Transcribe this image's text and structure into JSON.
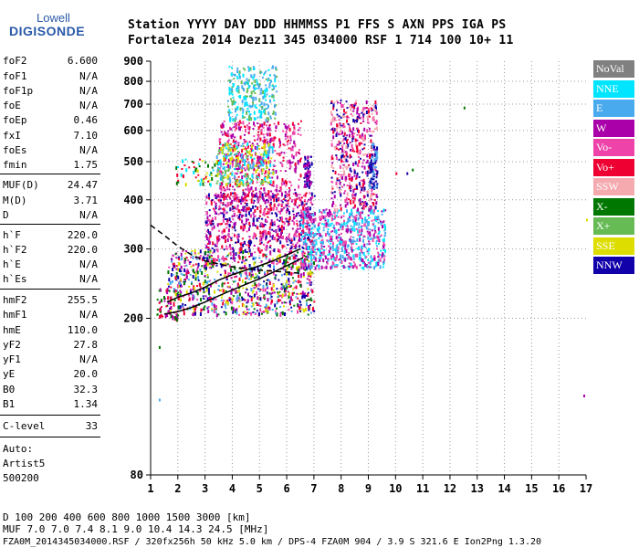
{
  "logo": {
    "line1": "Lowell",
    "line2": "DIGISONDE"
  },
  "header": {
    "row1": "Station   YYYY DAY   DDD HHMMSS P1  FFS S AXN PPS IGA PS",
    "row2": "Fortaleza 2014 Dez11 345 034000 RSF     1 714 100 10+ 11"
  },
  "params": [
    {
      "name": "foF2",
      "value": "6.600"
    },
    {
      "name": "foF1",
      "value": "N/A"
    },
    {
      "name": "foF1p",
      "value": "N/A"
    },
    {
      "name": "foE",
      "value": "N/A"
    },
    {
      "name": "foEp",
      "value": "0.46"
    },
    {
      "name": "fxI",
      "value": "7.10"
    },
    {
      "name": "foEs",
      "value": "N/A"
    },
    {
      "name": "fmin",
      "value": "1.75"
    },
    {
      "name": "MUF(D)",
      "value": "24.47"
    },
    {
      "name": "M(D)",
      "value": "3.71"
    },
    {
      "name": "D",
      "value": "N/A"
    },
    {
      "name": "h`F",
      "value": "220.0"
    },
    {
      "name": "h`F2",
      "value": "220.0"
    },
    {
      "name": "h`E",
      "value": "N/A"
    },
    {
      "name": "h`Es",
      "value": "N/A"
    },
    {
      "name": "hmF2",
      "value": "255.5"
    },
    {
      "name": "hmF1",
      "value": "N/A"
    },
    {
      "name": "hmE",
      "value": "110.0"
    },
    {
      "name": "yF2",
      "value": "27.8"
    },
    {
      "name": "yF1",
      "value": "N/A"
    },
    {
      "name": "yE",
      "value": "20.0"
    },
    {
      "name": "B0",
      "value": "32.3"
    },
    {
      "name": "B1",
      "value": "1.34"
    },
    {
      "name": "C-level",
      "value": "33"
    }
  ],
  "autoscale": {
    "line1": "Auto:",
    "line2": "Artist5",
    "line3": "500200"
  },
  "legend": [
    {
      "label": "NoVal",
      "color": "#808080"
    },
    {
      "label": "NNE",
      "color": "#00e5ff"
    },
    {
      "label": "E",
      "color": "#4aaaee"
    },
    {
      "label": "W",
      "color": "#aa00aa"
    },
    {
      "label": "Vo-",
      "color": "#ee44aa"
    },
    {
      "label": "Vo+",
      "color": "#ee0033"
    },
    {
      "label": "SSW",
      "color": "#f5aab0"
    },
    {
      "label": "X-",
      "color": "#007700"
    },
    {
      "label": "X+",
      "color": "#66bb55"
    },
    {
      "label": "SSE",
      "color": "#dddd00"
    },
    {
      "label": "NNW",
      "color": "#1100aa"
    }
  ],
  "footer": {
    "row1": "D     100  200  400  600  800 1000 1500 3000 [km]",
    "row2": "MUF   7.0  7.0  7.4  8.1  9.0 10.4 14.3 24.5 [MHz]",
    "row3": "FZA0M_2014345034000.RSF / 320fx256h 50 kHz 5.0 km / DPS-4 FZA0M 904 / 3.9 S 321.6 E   Ion2Png 1.3.20"
  },
  "chart_data": {
    "type": "scatter",
    "title": "",
    "xlabel": "",
    "ylabel": "",
    "xlim": [
      1,
      17
    ],
    "ylim": [
      80,
      900
    ],
    "y_scale": "log",
    "x_ticks": [
      1,
      2,
      3,
      4,
      5,
      6,
      7,
      8,
      9,
      10,
      11,
      12,
      13,
      14,
      15,
      16,
      17
    ],
    "y_ticks": [
      80,
      200,
      300,
      400,
      500,
      600,
      700,
      800,
      900
    ],
    "grid": true,
    "series": [
      {
        "name": "O-trace (F2 virtual height)",
        "color": "#000000",
        "x": [
          1.6,
          2.0,
          2.5,
          3.0,
          3.5,
          4.0,
          4.5,
          5.0,
          5.5,
          6.0,
          6.5
        ],
        "y": [
          220,
          226,
          232,
          240,
          250,
          258,
          265,
          272,
          280,
          290,
          300
        ]
      },
      {
        "name": "profile",
        "color": "#000000",
        "x": [
          1.5,
          2.0,
          2.5,
          3.0,
          3.5,
          4.0,
          4.5,
          5.0,
          5.5,
          6.0,
          6.6
        ],
        "y": [
          205,
          208,
          213,
          220,
          228,
          236,
          244,
          252,
          262,
          272,
          285
        ]
      },
      {
        "name": "dashed",
        "color": "#000000",
        "x": [
          1.0,
          1.5,
          2.0,
          2.5,
          3.0,
          3.5,
          4.0,
          5.0,
          6.0,
          6.6
        ],
        "y": [
          345,
          325,
          305,
          290,
          280,
          275,
          270,
          265,
          262,
          260
        ]
      }
    ]
  }
}
